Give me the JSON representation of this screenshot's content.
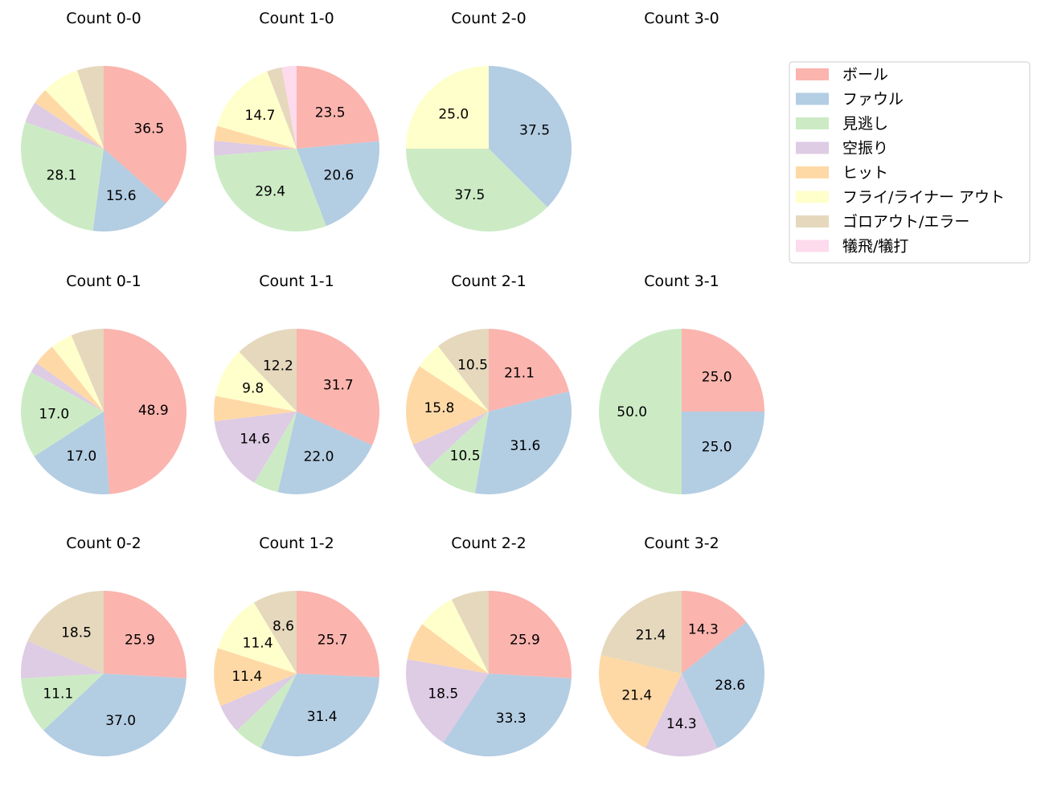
{
  "chart_data": {
    "type": "pie",
    "start": "top, clockwise",
    "label_threshold_note": "",
    "legend": {
      "placement": "upper-right",
      "entries": [
        "ボール",
        "ファウル",
        "見逃し",
        "空振り",
        "ヒット",
        "フライ/ライナー アウト",
        "ゴロアウト/エラー",
        "犠飛/犠打"
      ]
    },
    "colors": [
      "#fbb4ae",
      "#b3cde3",
      "#ccebc5",
      "#decbe4",
      "#fed9a6",
      "#ffffcc",
      "#e5d8bd",
      "#fddaec"
    ],
    "charts": [
      {
        "title": "Count 0-0",
        "values": [
          36.5,
          15.6,
          28.1,
          4.2,
          3.1,
          7.3,
          5.2,
          0
        ]
      },
      {
        "title": "Count 1-0",
        "values": [
          23.5,
          20.6,
          29.4,
          2.9,
          2.9,
          14.7,
          2.9,
          2.9
        ]
      },
      {
        "title": "Count 2-0",
        "values": [
          0,
          37.5,
          37.5,
          0,
          0,
          25.0,
          0,
          0
        ]
      },
      {
        "title": "Count 3-0",
        "values": [
          0,
          0,
          0,
          0,
          0,
          0,
          0,
          0
        ]
      },
      {
        "title": "Count 0-1",
        "values": [
          48.9,
          17.0,
          17.0,
          2.1,
          4.3,
          4.3,
          6.4,
          0
        ]
      },
      {
        "title": "Count 1-1",
        "values": [
          31.7,
          22.0,
          4.9,
          14.6,
          4.9,
          9.8,
          12.2,
          0
        ]
      },
      {
        "title": "Count 2-1",
        "values": [
          21.1,
          31.6,
          10.5,
          5.3,
          15.8,
          5.3,
          10.5,
          0
        ]
      },
      {
        "title": "Count 3-1",
        "values": [
          25.0,
          25.0,
          50.0,
          0,
          0,
          0,
          0,
          0
        ]
      },
      {
        "title": "Count 0-2",
        "values": [
          25.9,
          37.0,
          11.1,
          7.4,
          0,
          0,
          18.5,
          0
        ]
      },
      {
        "title": "Count 1-2",
        "values": [
          25.7,
          31.4,
          5.7,
          5.7,
          11.4,
          11.4,
          8.6,
          0
        ]
      },
      {
        "title": "Count 2-2",
        "values": [
          25.9,
          33.3,
          0,
          18.5,
          7.4,
          7.4,
          7.4,
          0
        ]
      },
      {
        "title": "Count 3-2",
        "values": [
          14.3,
          28.6,
          0,
          14.3,
          21.4,
          0,
          21.4,
          0
        ]
      }
    ]
  }
}
